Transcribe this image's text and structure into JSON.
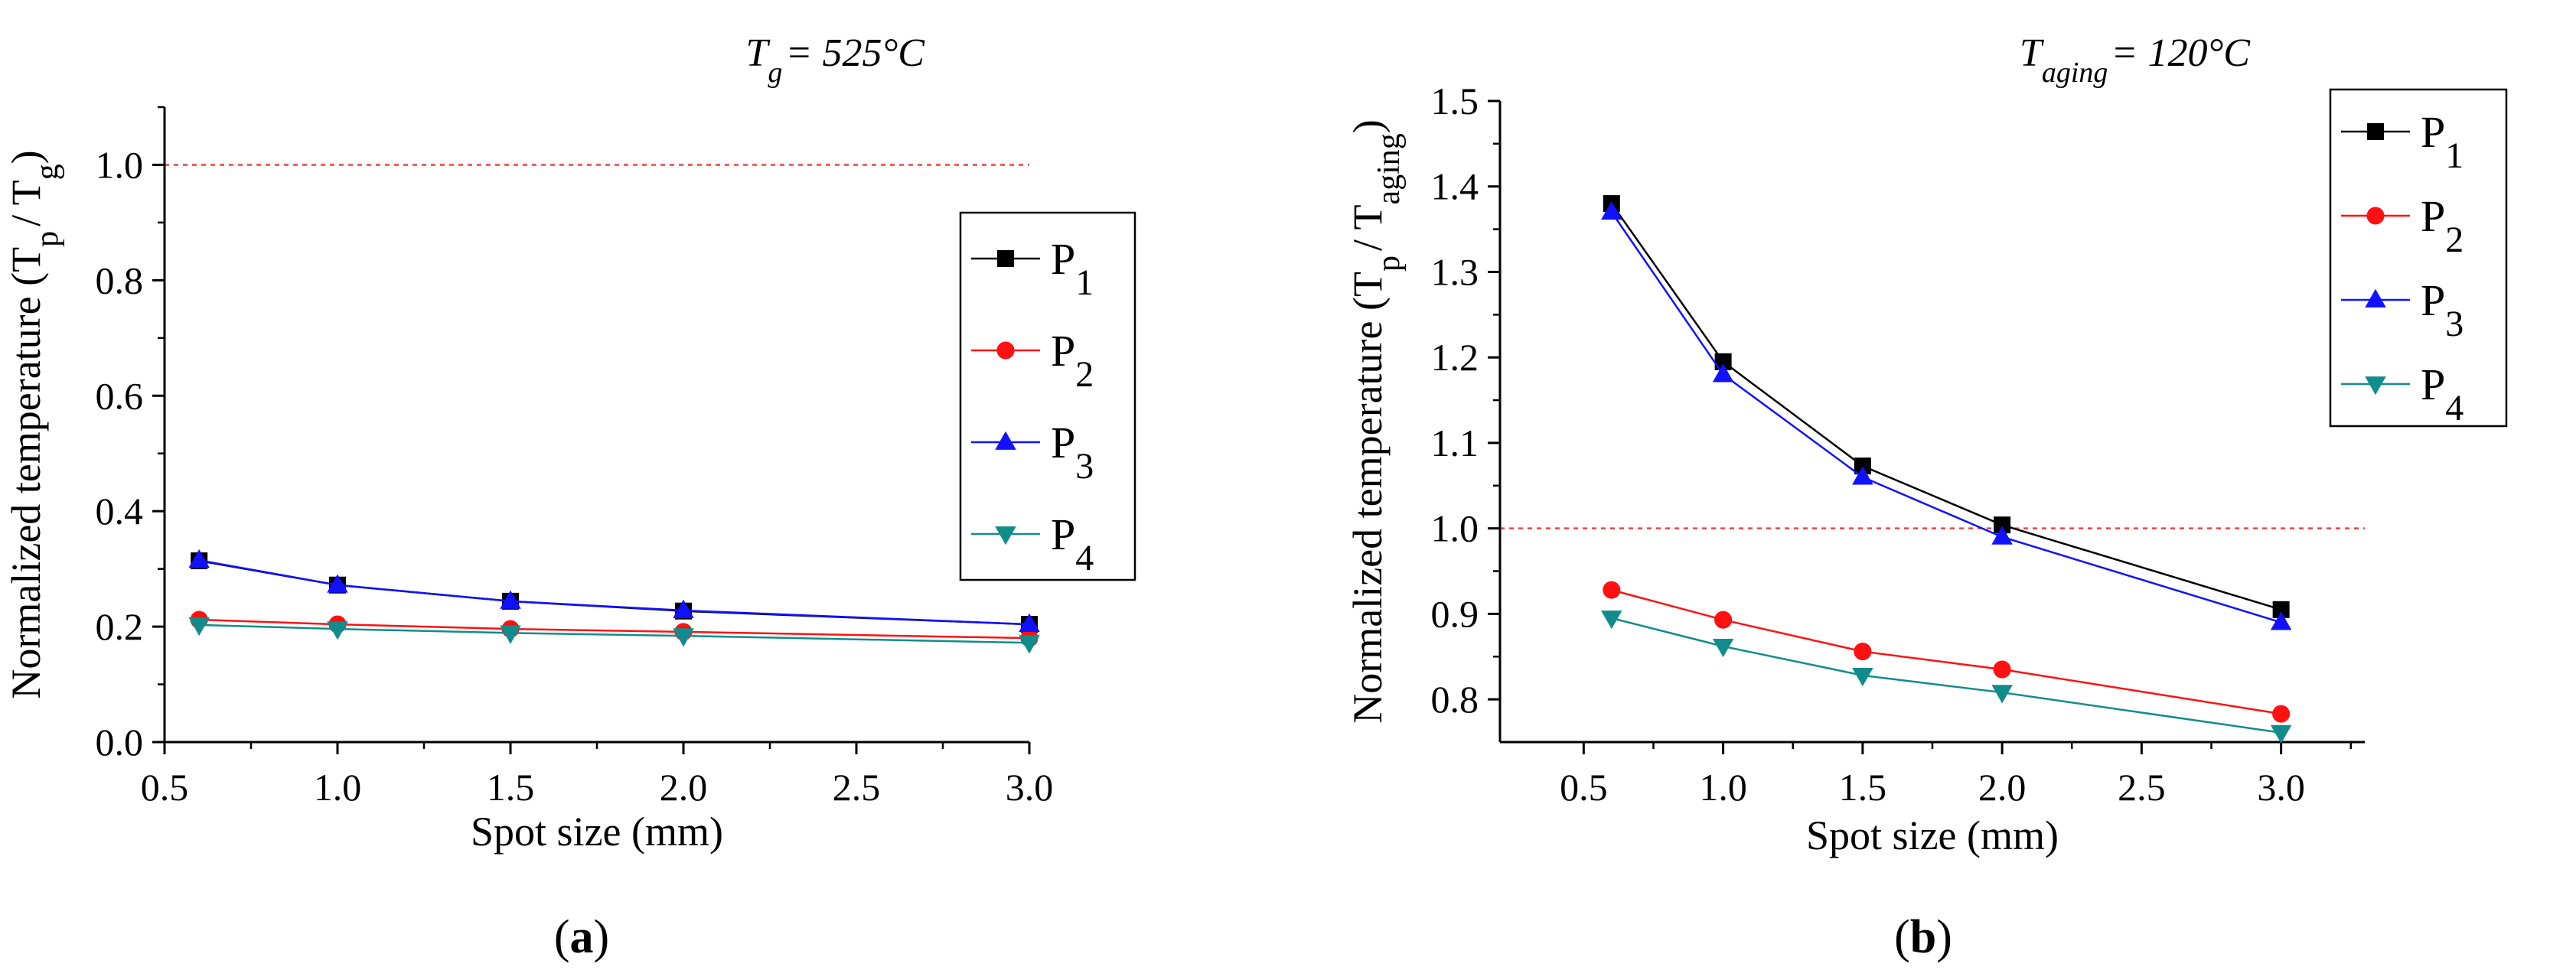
{
  "panels": [
    {
      "label": "a",
      "condition": {
        "symbol": "T",
        "subscript": "g",
        "value": "= 525°C"
      }
    },
    {
      "label": "b",
      "condition": {
        "symbol": "T",
        "subscript": "aging",
        "value": "= 120°C"
      }
    }
  ],
  "chart_data": [
    {
      "type": "line",
      "panel": "a",
      "xlabel": "Spot size (mm)",
      "ylabel": {
        "main": "Normalized temperature (T",
        "sub1": "p",
        "mid": "/ T",
        "sub2": "g",
        "end": ")"
      },
      "xlim": [
        0.5,
        3.0
      ],
      "ylim": [
        0.0,
        1.1
      ],
      "xticks": [
        "0.5",
        "1.0",
        "1.5",
        "2.0",
        "2.5",
        "3.0"
      ],
      "yticks": [
        "0.0",
        "0.2",
        "0.4",
        "0.6",
        "0.8",
        "1.0"
      ],
      "reference_line": {
        "y": 1.0,
        "color": "#ee4444"
      },
      "x": [
        0.6,
        1.0,
        1.5,
        2.0,
        3.0
      ],
      "legend_position": "right",
      "series": [
        {
          "name": "P",
          "sub": "1",
          "color": "#000000",
          "marker": "square",
          "values": [
            0.314,
            0.272,
            0.244,
            0.227,
            0.204
          ]
        },
        {
          "name": "P",
          "sub": "2",
          "color": "#ff1111",
          "marker": "circle",
          "values": [
            0.212,
            0.204,
            0.196,
            0.191,
            0.18
          ]
        },
        {
          "name": "P",
          "sub": "3",
          "color": "#1111ff",
          "marker": "triangle-up",
          "values": [
            0.315,
            0.272,
            0.244,
            0.228,
            0.204
          ]
        },
        {
          "name": "P",
          "sub": "4",
          "color": "#118c8c",
          "marker": "triangle-down",
          "values": [
            0.203,
            0.196,
            0.189,
            0.184,
            0.172
          ]
        }
      ]
    },
    {
      "type": "line",
      "panel": "b",
      "xlabel": "Spot size (mm)",
      "ylabel": {
        "main": "Normalized temperature (T",
        "sub1": "p",
        "mid": "/ T",
        "sub2": "aging",
        "end": ")"
      },
      "xlim": [
        0.2,
        3.3
      ],
      "ylim": [
        0.75,
        1.5
      ],
      "xticks": [
        "0.5",
        "1.0",
        "1.5",
        "2.0",
        "2.5",
        "3.0"
      ],
      "yticks": [
        "0.8",
        "0.9",
        "1.0",
        "1.1",
        "1.2",
        "1.3",
        "1.4",
        "1.5"
      ],
      "reference_line": {
        "y": 1.0,
        "color": "#ee4444"
      },
      "x": [
        0.6,
        1.0,
        1.5,
        2.0,
        3.0
      ],
      "legend_position": "top-right",
      "series": [
        {
          "name": "P",
          "sub": "1",
          "color": "#000000",
          "marker": "square",
          "values": [
            1.38,
            1.195,
            1.073,
            1.004,
            0.905
          ]
        },
        {
          "name": "P",
          "sub": "2",
          "color": "#ff1111",
          "marker": "circle",
          "values": [
            0.928,
            0.893,
            0.856,
            0.835,
            0.783
          ]
        },
        {
          "name": "P",
          "sub": "3",
          "color": "#1111ff",
          "marker": "triangle-up",
          "values": [
            1.37,
            1.18,
            1.06,
            0.99,
            0.89
          ]
        },
        {
          "name": "P",
          "sub": "4",
          "color": "#118c8c",
          "marker": "triangle-down",
          "values": [
            0.895,
            0.862,
            0.828,
            0.808,
            0.761
          ]
        }
      ]
    }
  ]
}
